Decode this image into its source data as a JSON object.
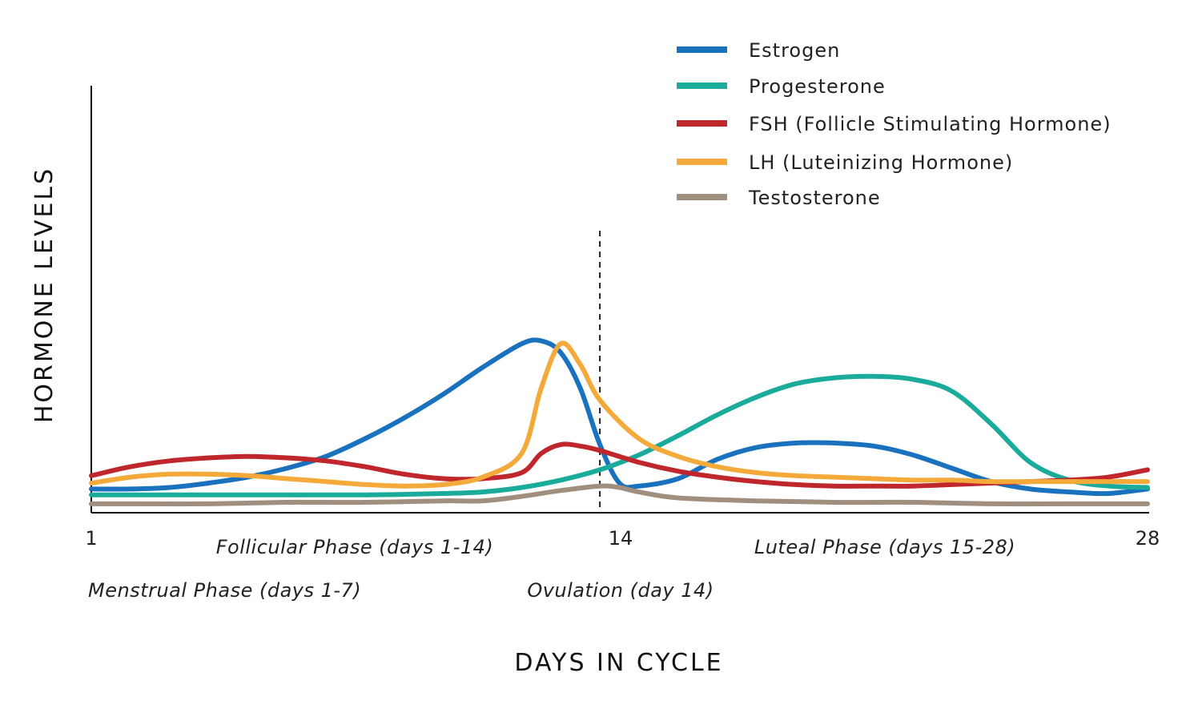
{
  "chart_data": {
    "type": "line",
    "title": "",
    "xlabel": "DAYS IN CYCLE",
    "ylabel": "HORMONE LEVELS",
    "xlim": [
      1,
      28
    ],
    "ylim": [
      0,
      100
    ],
    "x_ticks": [
      {
        "value": 1,
        "label": "1"
      },
      {
        "value": 14,
        "label": "14"
      },
      {
        "value": 28,
        "label": "28"
      }
    ],
    "marker": {
      "x": 14,
      "style": "dashed"
    },
    "legend_position": "top-right",
    "series": [
      {
        "name": "Estrogen",
        "color": "#1a72bf",
        "points": [
          [
            1,
            8
          ],
          [
            2,
            8
          ],
          [
            3,
            8.5
          ],
          [
            4,
            10
          ],
          [
            5,
            12
          ],
          [
            6,
            15
          ],
          [
            7,
            19
          ],
          [
            8,
            25
          ],
          [
            9,
            32
          ],
          [
            10,
            40
          ],
          [
            11,
            49
          ],
          [
            12,
            57
          ],
          [
            12.5,
            58
          ],
          [
            13,
            54
          ],
          [
            13.5,
            42
          ],
          [
            14,
            23
          ],
          [
            14.5,
            10
          ],
          [
            15,
            9
          ],
          [
            16,
            11.5
          ],
          [
            17,
            18
          ],
          [
            18,
            22
          ],
          [
            19,
            23.5
          ],
          [
            20,
            23.5
          ],
          [
            21,
            22.5
          ],
          [
            22,
            19.5
          ],
          [
            23,
            15
          ],
          [
            24,
            10.5
          ],
          [
            25,
            8
          ],
          [
            26,
            7
          ],
          [
            27,
            6.5
          ],
          [
            28,
            8
          ]
        ]
      },
      {
        "name": "Progesterone",
        "color": "#1aab9b",
        "points": [
          [
            1,
            6
          ],
          [
            2,
            6
          ],
          [
            4,
            6
          ],
          [
            6,
            6
          ],
          [
            8,
            6
          ],
          [
            10,
            6.5
          ],
          [
            11,
            7
          ],
          [
            12,
            8.5
          ],
          [
            13,
            11
          ],
          [
            14,
            14.5
          ],
          [
            15,
            19.5
          ],
          [
            16,
            26
          ],
          [
            17,
            33
          ],
          [
            18,
            39
          ],
          [
            19,
            43.5
          ],
          [
            20,
            45.5
          ],
          [
            21,
            46
          ],
          [
            22,
            45
          ],
          [
            23,
            41
          ],
          [
            24,
            30
          ],
          [
            25,
            17
          ],
          [
            26,
            11
          ],
          [
            27,
            9
          ],
          [
            28,
            8.5
          ]
        ]
      },
      {
        "name": "FSH (Follicle Stimulating Hormone)",
        "color": "#c0272d",
        "points": [
          [
            1,
            12.5
          ],
          [
            2,
            15.5
          ],
          [
            3,
            17.5
          ],
          [
            4,
            18.5
          ],
          [
            5,
            19
          ],
          [
            6,
            18.5
          ],
          [
            7,
            17.5
          ],
          [
            8,
            15.5
          ],
          [
            9,
            13
          ],
          [
            10,
            11.5
          ],
          [
            11,
            11.5
          ],
          [
            12,
            13.5
          ],
          [
            12.5,
            20
          ],
          [
            13,
            23
          ],
          [
            13.5,
            22.5
          ],
          [
            14,
            21
          ],
          [
            15,
            17
          ],
          [
            16,
            14
          ],
          [
            17,
            12
          ],
          [
            18,
            10.5
          ],
          [
            19,
            9.5
          ],
          [
            20,
            9
          ],
          [
            21,
            9
          ],
          [
            22,
            9
          ],
          [
            23,
            9.5
          ],
          [
            24,
            10
          ],
          [
            25,
            10.5
          ],
          [
            26,
            11
          ],
          [
            27,
            12
          ],
          [
            28,
            14.5
          ]
        ]
      },
      {
        "name": "LH (Luteinizing Hormone)",
        "color": "#f4aa3a",
        "points": [
          [
            1,
            10
          ],
          [
            2,
            12
          ],
          [
            3,
            13
          ],
          [
            4,
            13
          ],
          [
            5,
            12.5
          ],
          [
            6,
            11.5
          ],
          [
            7,
            10.5
          ],
          [
            8,
            9.5
          ],
          [
            9,
            9
          ],
          [
            10,
            9.5
          ],
          [
            11,
            12
          ],
          [
            12,
            20
          ],
          [
            12.5,
            42
          ],
          [
            13,
            57
          ],
          [
            13.5,
            50
          ],
          [
            14,
            38
          ],
          [
            15,
            25
          ],
          [
            16,
            19
          ],
          [
            17,
            15.5
          ],
          [
            18,
            13.5
          ],
          [
            19,
            12.5
          ],
          [
            20,
            12
          ],
          [
            21,
            11.5
          ],
          [
            22,
            11
          ],
          [
            23,
            11
          ],
          [
            24,
            10.5
          ],
          [
            25,
            10.5
          ],
          [
            26,
            10.5
          ],
          [
            27,
            10.5
          ],
          [
            28,
            10.5
          ]
        ]
      },
      {
        "name": "Testosterone",
        "color": "#a08e7f",
        "points": [
          [
            1,
            3
          ],
          [
            2,
            3
          ],
          [
            4,
            3
          ],
          [
            6,
            3.5
          ],
          [
            8,
            3.5
          ],
          [
            10,
            4
          ],
          [
            11,
            4
          ],
          [
            12,
            5.5
          ],
          [
            13,
            7.5
          ],
          [
            14,
            9
          ],
          [
            14.5,
            8.5
          ],
          [
            15,
            7
          ],
          [
            16,
            5
          ],
          [
            18,
            4
          ],
          [
            20,
            3.5
          ],
          [
            22,
            3.5
          ],
          [
            24,
            3
          ],
          [
            26,
            3
          ],
          [
            28,
            3
          ]
        ]
      }
    ],
    "annotations": [
      {
        "text": "Follicular Phase (days 1-14)",
        "x": 7.5
      },
      {
        "text": "Luteal Phase (days 15-28)",
        "x": 21.5
      },
      {
        "text": "Menstrual Phase (days 1-7)",
        "x": 1
      },
      {
        "text": "Ovulation (day 14)",
        "x": 14
      }
    ]
  }
}
